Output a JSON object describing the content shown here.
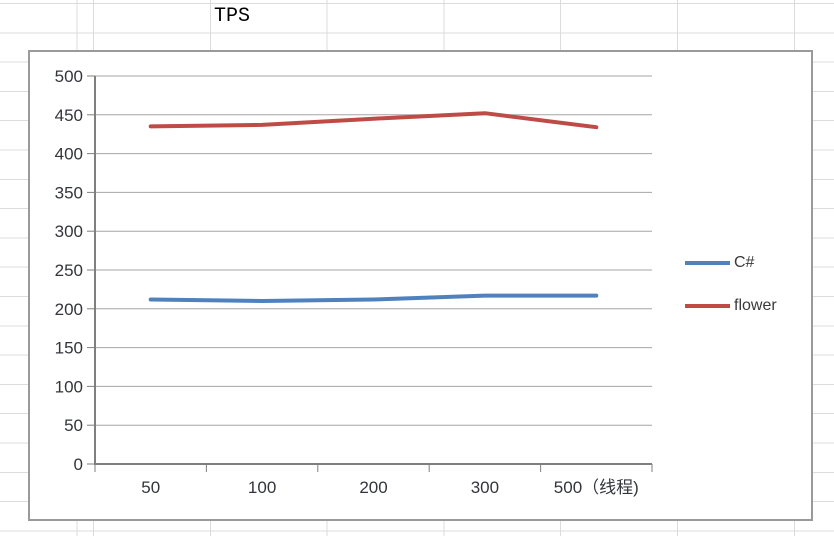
{
  "sheet": {
    "title_cell_text": "TPS",
    "grid_color": "#dcdcdc"
  },
  "chart": {
    "background": "#ffffff",
    "border_color": "#9a9a9a",
    "gridline_color": "#a6a6a6",
    "axis_color": "#7f7f7f",
    "tick_label_color": "#33353c",
    "legend_text_color": "#3a3a3a"
  },
  "chart_data": {
    "type": "line",
    "title": "TPS",
    "categories": [
      "50",
      "100",
      "200",
      "300",
      "500（线程)"
    ],
    "series": [
      {
        "name": "C#",
        "color": "#4f81bd",
        "values": [
          212,
          210,
          212,
          217,
          217
        ]
      },
      {
        "name": "flower",
        "color": "#bf4b47",
        "values": [
          435,
          437,
          445,
          452,
          434
        ]
      }
    ],
    "ylim": [
      0,
      500
    ],
    "ytick_step": 50,
    "yticks": [
      0,
      50,
      100,
      150,
      200,
      250,
      300,
      350,
      400,
      450,
      500
    ],
    "grid": true,
    "legend_position": "right",
    "xlabel": "",
    "ylabel": ""
  }
}
